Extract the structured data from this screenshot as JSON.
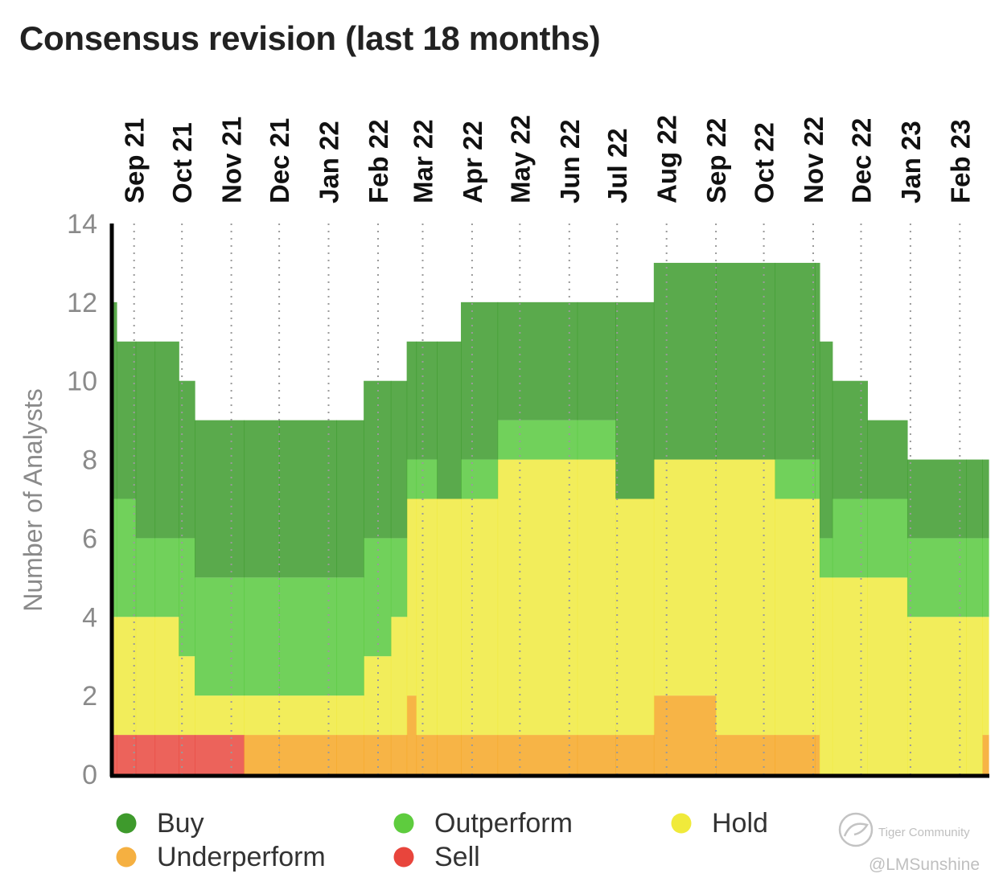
{
  "chart_data": {
    "type": "area",
    "title": "Consensus revision (last 18 months)",
    "ylabel": "Number of Analysts",
    "xlabel": "",
    "ylim": [
      0,
      14
    ],
    "yticks": [
      0,
      2,
      4,
      6,
      8,
      10,
      12,
      14
    ],
    "grid": "vertical dotted lines at month ticks",
    "legend_position": "bottom",
    "month_ticks": [
      "Sep 21",
      "Oct 21",
      "Nov 21",
      "Dec 21",
      "Jan 22",
      "Feb 22",
      "Mar 22",
      "Apr 22",
      "May 22",
      "Jun 22",
      "Jul 22",
      "Aug 22",
      "Sep 22",
      "Oct 22",
      "Nov 22",
      "Dec 22",
      "Jan 23",
      "Feb 23"
    ],
    "x": [
      "2021-09-01",
      "2021-09-04",
      "2021-09-16",
      "2021-09-28",
      "2021-10-13",
      "2021-10-23",
      "2021-11-23",
      "2021-12-15",
      "2022-01-20",
      "2022-02-06",
      "2022-02-23",
      "2022-03-05",
      "2022-03-11",
      "2022-03-24",
      "2022-04-08",
      "2022-05-01",
      "2022-06-20",
      "2022-07-14",
      "2022-08-07",
      "2022-09-15",
      "2022-10-22",
      "2022-11-16",
      "2022-11-19",
      "2022-11-27",
      "2022-12-19",
      "2023-01-13",
      "2023-02-19",
      "2023-03-01"
    ],
    "x_end": "2023-03-05",
    "series": [
      {
        "name": "Sell",
        "color": "#e8453c",
        "values": [
          1,
          1,
          1,
          1,
          1,
          1,
          0,
          0,
          0,
          0,
          0,
          0,
          0,
          0,
          0,
          0,
          0,
          0,
          0,
          0,
          0,
          0,
          0,
          0,
          0,
          0,
          0,
          0
        ]
      },
      {
        "name": "Underperform",
        "color": "#f5a623",
        "values": [
          0,
          0,
          0,
          0,
          0,
          0,
          1,
          1,
          1,
          1,
          1,
          2,
          1,
          1,
          1,
          1,
          1,
          1,
          2,
          1,
          1,
          1,
          0,
          0,
          0,
          0,
          0,
          1
        ]
      },
      {
        "name": "Hold",
        "color": "#f0ea3b",
        "values": [
          3,
          3,
          3,
          3,
          2,
          1,
          1,
          1,
          1,
          2,
          3,
          5,
          6,
          6,
          6,
          7,
          7,
          6,
          6,
          7,
          6,
          6,
          5,
          5,
          5,
          4,
          4,
          3
        ]
      },
      {
        "name": "Outperform",
        "color": "#56c83c",
        "values": [
          3,
          3,
          2,
          2,
          3,
          3,
          3,
          3,
          3,
          3,
          2,
          1,
          1,
          0,
          1,
          1,
          1,
          0,
          0,
          0,
          1,
          1,
          1,
          2,
          2,
          2,
          2,
          2
        ]
      },
      {
        "name": "Buy",
        "color": "#3a9a2a",
        "values": [
          5,
          4,
          5,
          5,
          4,
          4,
          4,
          4,
          4,
          4,
          4,
          3,
          3,
          4,
          4,
          3,
          3,
          5,
          5,
          5,
          5,
          5,
          5,
          3,
          2,
          2,
          2,
          2
        ]
      }
    ],
    "legend": [
      {
        "name": "Buy",
        "color": "#3e9a2c"
      },
      {
        "name": "Outperform",
        "color": "#5ecc3e"
      },
      {
        "name": "Hold",
        "color": "#f0ea3b"
      },
      {
        "name": "Underperform",
        "color": "#f5b041"
      },
      {
        "name": "Sell",
        "color": "#e8453c"
      }
    ]
  },
  "watermark": {
    "brand": "Tiger Community",
    "handle": "@LMSunshine",
    "icon": "tiger-community-logo-icon"
  }
}
